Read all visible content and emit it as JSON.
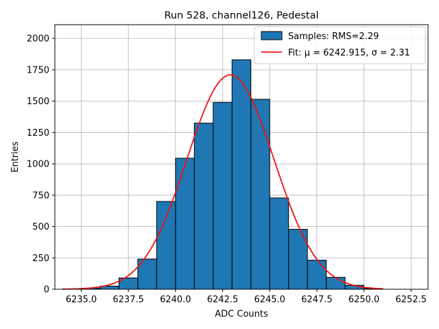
{
  "chart_data": {
    "type": "bar",
    "title": "Run 528, channel126, Pedestal",
    "xlabel": "ADC Counts",
    "ylabel": "Entries",
    "xlim": [
      6233.6,
      6253.4
    ],
    "ylim": [
      0,
      2110
    ],
    "x_ticks": [
      6235.0,
      6237.5,
      6240.0,
      6242.5,
      6245.0,
      6247.5,
      6250.0,
      6252.5
    ],
    "x_tick_labels": [
      "6235.0",
      "6237.5",
      "6240.0",
      "6242.5",
      "6245.0",
      "6247.5",
      "6250.0",
      "6252.5"
    ],
    "y_ticks": [
      0,
      250,
      500,
      750,
      1000,
      1250,
      1500,
      1750,
      2000
    ],
    "y_tick_labels": [
      "0",
      "250",
      "500",
      "750",
      "1000",
      "1250",
      "1500",
      "1750",
      "2000"
    ],
    "grid": true,
    "legend_placement": "top-right",
    "bin_width": 1,
    "bins": [
      {
        "left": 6235,
        "value": 8
      },
      {
        "left": 6236,
        "value": 25
      },
      {
        "left": 6237,
        "value": 90
      },
      {
        "left": 6238,
        "value": 240
      },
      {
        "left": 6239,
        "value": 700
      },
      {
        "left": 6240,
        "value": 1045
      },
      {
        "left": 6241,
        "value": 1325
      },
      {
        "left": 6242,
        "value": 1490
      },
      {
        "left": 6243,
        "value": 1830
      },
      {
        "left": 6244,
        "value": 1515
      },
      {
        "left": 6245,
        "value": 728
      },
      {
        "left": 6246,
        "value": 478
      },
      {
        "left": 6247,
        "value": 232
      },
      {
        "left": 6248,
        "value": 95
      },
      {
        "left": 6249,
        "value": 32
      },
      {
        "left": 6250,
        "value": 6
      }
    ],
    "fit": {
      "mu": 6242.915,
      "sigma": 2.31,
      "amplitude": 1710,
      "x_range": [
        6234.0,
        6251.0
      ]
    },
    "legend": [
      {
        "label": "Samples: RMS=2.29",
        "kind": "patch",
        "color": "#1f77b4"
      },
      {
        "label": "Fit: μ = 6242.915, σ = 2.31",
        "kind": "line",
        "color": "#ee1111"
      }
    ],
    "colors": {
      "bar": "#1f77b4",
      "bar_edge": "#000000",
      "fit": "#ee1111",
      "grid": "#b0b0b0"
    }
  }
}
